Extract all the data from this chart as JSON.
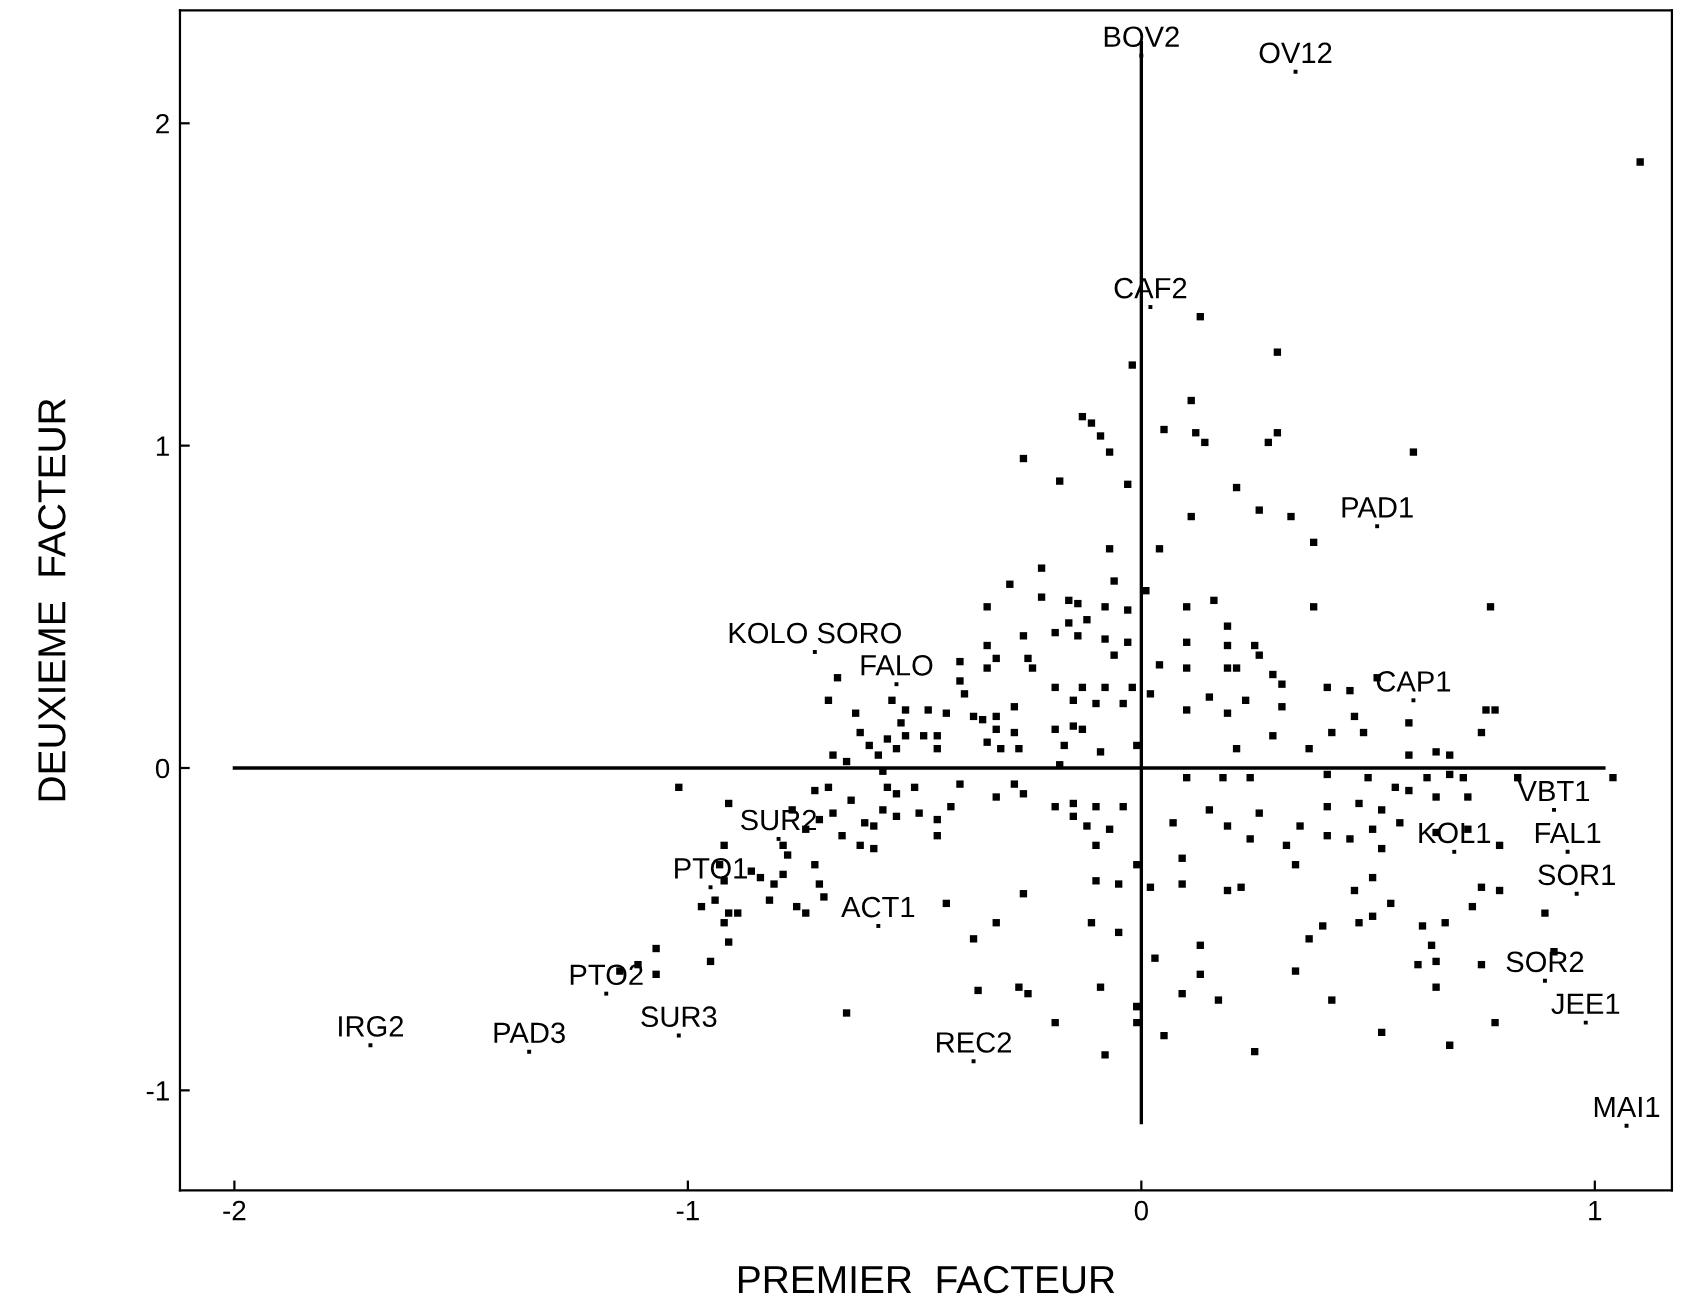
{
  "chart_data": {
    "type": "scatter",
    "xlabel": "PREMIER  FACTEUR",
    "ylabel": "DEUXIEME  FACTEUR",
    "xlim": [
      -2.12,
      1.17
    ],
    "ylim": [
      -1.31,
      2.35
    ],
    "xticks": [
      -2,
      -1,
      0,
      1
    ],
    "yticks": [
      -1,
      0,
      1,
      2
    ],
    "grid": false,
    "legend": false,
    "marker": "square",
    "series": [
      {
        "type": "line",
        "marker": "none",
        "color": "#000000",
        "x": [
          -2,
          1.02
        ],
        "values": [
          0,
          0
        ]
      },
      {
        "type": "line",
        "marker": "none",
        "color": "#000000",
        "x": [
          0,
          0
        ],
        "values": [
          -1.1,
          2.25
        ]
      },
      {
        "marker": "square",
        "color": "#000000",
        "x": [
          0,
          0.34,
          0.02,
          0.52,
          -0.72,
          -0.54,
          0.6,
          0.91,
          0.69,
          0.94,
          0.96,
          -0.8,
          -0.95,
          -0.58,
          0.89,
          -1.18,
          0.98,
          -1.02,
          -1.7,
          -1.35,
          -0.37,
          1.07
        ],
        "values": [
          2.21,
          2.16,
          1.43,
          0.75,
          0.36,
          0.26,
          0.21,
          -0.13,
          -0.26,
          -0.26,
          -0.39,
          -0.22,
          -0.37,
          -0.49,
          -0.66,
          -0.7,
          -0.79,
          -0.83,
          -0.86,
          -0.88,
          -0.91,
          -1.11
        ],
        "value_labels": [
          "BOV2",
          "OV12",
          "CAF2",
          "PAD1",
          "KOLO SORO",
          "FALO",
          "CAP1",
          "VBT1",
          "KOL1",
          "FAL1",
          "SOR1",
          "SUR2",
          "PTO1",
          "ACT1",
          "SOR2",
          "PTO2",
          "JEE1",
          "SUR3",
          "IRG2",
          "PAD3",
          "REC2",
          "MAI1"
        ]
      },
      {
        "color": "#000000",
        "x": [
          0.13,
          0.3,
          -0.02,
          0.11,
          0.05,
          0.12,
          0.14,
          0.28,
          0.3,
          0.6,
          -0.03,
          0.21,
          0.26,
          0.33,
          0.11,
          0.38,
          0.04,
          0.38,
          0.77,
          0.01,
          0.1,
          0.16,
          0.19,
          0.1,
          0.19,
          0.25,
          0.26,
          0.04,
          0.1,
          0.19,
          0.21,
          0.29,
          0.31,
          0.02,
          0.15,
          0.23,
          0.41,
          0.46,
          0.52,
          0.1,
          0.31,
          0.19,
          0.47,
          0.59,
          0.76,
          0.78,
          0.75,
          0.21,
          0.29,
          0.37,
          0.42,
          0.49,
          0.65,
          0.59,
          0.68,
          0.1,
          0.18,
          0.24,
          0.41,
          0.5,
          0.56,
          0.63,
          0.68,
          0.71,
          0.83,
          1.04,
          0.15,
          0.26,
          0.35,
          0.41,
          0.48,
          0.53,
          0.59,
          0.65,
          0.72,
          0.07,
          0.19,
          0.51,
          0.57,
          0.24,
          0.32,
          0.41,
          0.46,
          0.53,
          0.65,
          0.72,
          0.79,
          0.09,
          0.02,
          0.09,
          0.19,
          0.22,
          0.34,
          0.47,
          0.51,
          0.4,
          0.48,
          0.51,
          0.55,
          0.62,
          0.67,
          0.75,
          0.73,
          0.79,
          0.89,
          0.37,
          0.91,
          0.64,
          0.61,
          0.65,
          0.75,
          0.13,
          0.03,
          0.13,
          0.34,
          0.65,
          0.09,
          0.17,
          0.42,
          -0.01,
          0.78,
          0.05,
          0.53,
          0.68,
          0.25,
          1.1,
          -0.07,
          -0.06,
          -0.22,
          -0.29,
          -0.34,
          -0.22,
          -0.16,
          -0.14,
          -0.08,
          -0.03,
          -0.16,
          -0.12,
          -0.19,
          -0.14,
          -0.08,
          -0.26,
          -0.34,
          -0.4,
          -0.32,
          -0.25,
          -0.24,
          -0.06,
          -0.03,
          -0.34,
          -0.4,
          -0.19,
          -0.13,
          -0.08,
          -0.02,
          -0.15,
          -0.1,
          -0.04,
          -0.67,
          -0.69,
          -0.63,
          -0.55,
          -0.52,
          -0.47,
          -0.43,
          -0.39,
          -0.37,
          -0.53,
          -0.62,
          -0.6,
          -0.56,
          -0.52,
          -0.48,
          -0.45,
          -0.45,
          -0.58,
          -0.54,
          -0.35,
          -0.32,
          -0.28,
          -0.34,
          -0.31,
          -0.27,
          -0.32,
          -0.28,
          -0.19,
          -0.15,
          -0.13,
          -0.17,
          -0.09,
          -0.01,
          -0.68,
          -0.65,
          -0.57,
          -0.18,
          -1.02,
          -0.91,
          -0.77,
          -0.72,
          -0.69,
          -0.64,
          -0.56,
          -0.54,
          -0.5,
          -0.57,
          -0.54,
          -0.61,
          -0.68,
          -0.71,
          -0.74,
          -0.66,
          -0.59,
          -0.62,
          -0.59,
          -0.49,
          -0.45,
          -0.42,
          -0.45,
          -0.4,
          -0.32,
          -0.28,
          -0.26,
          -0.19,
          -0.15,
          -0.1,
          -0.04,
          -0.15,
          -0.12,
          -0.07,
          -0.1,
          -0.92,
          -0.93,
          -0.92,
          -0.86,
          -0.84,
          -0.81,
          -0.79,
          -0.78,
          -0.79,
          -0.72,
          -0.71,
          -0.7,
          -0.76,
          -0.74,
          -0.82,
          -0.97,
          -0.94,
          -0.91,
          -0.89,
          -0.92,
          -0.91,
          -0.95,
          -1.07,
          -1.07,
          -1.11,
          -1.15,
          -0.65,
          -0.43,
          -0.26,
          -0.32,
          -0.37,
          -0.36,
          -0.27,
          -0.25,
          -0.19,
          -0.09,
          -0.11,
          -0.05,
          -0.08,
          -0.1,
          -0.05,
          -0.01,
          -0.01,
          -0.01,
          -0.13,
          -0.11,
          -0.09,
          -0.07,
          -0.26,
          -0.18
        ],
        "values": [
          1.4,
          1.29,
          1.25,
          1.14,
          1.05,
          1.04,
          1.01,
          1.01,
          1.04,
          0.98,
          0.88,
          0.87,
          0.8,
          0.78,
          0.78,
          0.7,
          0.68,
          0.5,
          0.5,
          0.55,
          0.5,
          0.52,
          0.44,
          0.39,
          0.38,
          0.38,
          0.35,
          0.32,
          0.31,
          0.31,
          0.31,
          0.29,
          0.26,
          0.23,
          0.22,
          0.21,
          0.25,
          0.24,
          0.28,
          0.18,
          0.19,
          0.17,
          0.16,
          0.14,
          0.18,
          0.18,
          0.11,
          0.06,
          0.1,
          0.06,
          0.11,
          0.11,
          0.05,
          0.04,
          0.04,
          -0.03,
          -0.03,
          -0.03,
          -0.02,
          -0.03,
          -0.06,
          -0.03,
          -0.02,
          -0.03,
          -0.03,
          -0.03,
          -0.13,
          -0.14,
          -0.18,
          -0.12,
          -0.11,
          -0.13,
          -0.07,
          -0.09,
          -0.09,
          -0.17,
          -0.18,
          -0.19,
          -0.17,
          -0.22,
          -0.24,
          -0.21,
          -0.22,
          -0.25,
          -0.2,
          -0.19,
          -0.24,
          -0.28,
          -0.37,
          -0.36,
          -0.38,
          -0.37,
          -0.3,
          -0.38,
          -0.34,
          -0.49,
          -0.48,
          -0.46,
          -0.42,
          -0.49,
          -0.48,
          -0.37,
          -0.43,
          -0.38,
          -0.45,
          -0.53,
          -0.57,
          -0.55,
          -0.61,
          -0.6,
          -0.61,
          -0.55,
          -0.59,
          -0.64,
          -0.63,
          -0.68,
          -0.7,
          -0.72,
          -0.72,
          -0.74,
          -0.79,
          -0.83,
          -0.82,
          -0.86,
          -0.88,
          1.88,
          0.68,
          0.58,
          0.62,
          0.57,
          0.5,
          0.53,
          0.52,
          0.51,
          0.5,
          0.49,
          0.45,
          0.46,
          0.42,
          0.41,
          0.4,
          0.41,
          0.38,
          0.33,
          0.34,
          0.34,
          0.31,
          0.35,
          0.39,
          0.31,
          0.27,
          0.25,
          0.25,
          0.25,
          0.25,
          0.21,
          0.2,
          0.2,
          0.28,
          0.21,
          0.17,
          0.21,
          0.18,
          0.18,
          0.17,
          0.23,
          0.16,
          0.14,
          0.11,
          0.07,
          0.09,
          0.1,
          0.1,
          0.1,
          0.06,
          0.04,
          0.06,
          0.15,
          0.12,
          0.11,
          0.08,
          0.06,
          0.06,
          0.16,
          0.19,
          0.12,
          0.13,
          0.12,
          0.07,
          0.05,
          0.07,
          0.04,
          0.02,
          -0.01,
          0.01,
          -0.06,
          -0.11,
          -0.13,
          -0.07,
          -0.06,
          -0.1,
          -0.06,
          -0.08,
          -0.06,
          -0.13,
          -0.15,
          -0.17,
          -0.14,
          -0.16,
          -0.19,
          -0.21,
          -0.18,
          -0.24,
          -0.25,
          -0.14,
          -0.16,
          -0.12,
          -0.21,
          -0.05,
          -0.09,
          -0.05,
          -0.08,
          -0.12,
          -0.11,
          -0.12,
          -0.12,
          -0.15,
          -0.18,
          -0.19,
          -0.24,
          -0.24,
          -0.3,
          -0.35,
          -0.32,
          -0.34,
          -0.36,
          -0.33,
          -0.27,
          -0.24,
          -0.3,
          -0.36,
          -0.4,
          -0.43,
          -0.45,
          -0.41,
          -0.43,
          -0.41,
          -0.45,
          -0.45,
          -0.48,
          -0.54,
          -0.6,
          -0.56,
          -0.64,
          -0.61,
          -0.63,
          -0.76,
          -0.42,
          -0.39,
          -0.48,
          -0.53,
          -0.69,
          -0.68,
          -0.7,
          -0.79,
          -0.68,
          -0.48,
          -0.51,
          -0.89,
          -0.35,
          -0.36,
          -0.74,
          -0.79,
          -0.3,
          1.09,
          1.07,
          1.03,
          0.98,
          0.96,
          0.89
        ]
      }
    ]
  }
}
